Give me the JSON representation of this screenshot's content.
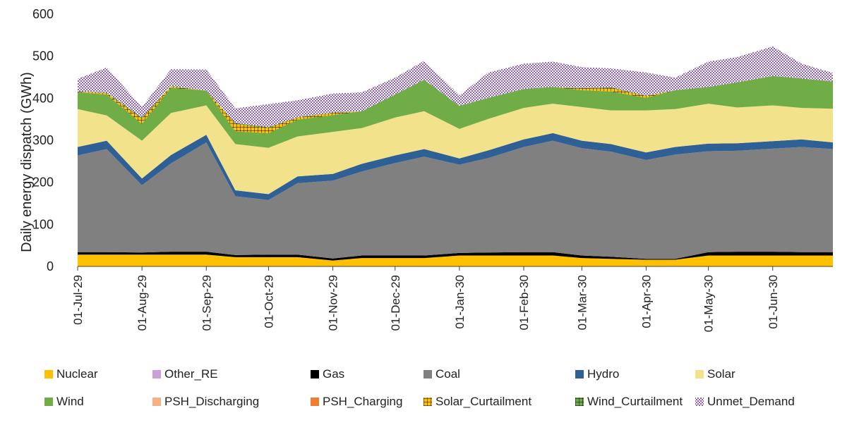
{
  "chart_data": {
    "type": "area",
    "stacked": true,
    "ylabel": "Daily energy dispatch (GWh)",
    "ylim": [
      0,
      600
    ],
    "yticks": [
      "0",
      "100",
      "200",
      "300",
      "400",
      "500",
      "600"
    ],
    "x_start": "01-Jul-29",
    "x_end": "30-Jun-30",
    "xtick_labels": [
      "01-Jul-29",
      "01-Aug-29",
      "01-Sep-29",
      "01-Oct-29",
      "01-Nov-29",
      "01-Dec-29",
      "01-Jan-30",
      "01-Feb-30",
      "01-Mar-30",
      "01-Apr-30",
      "01-May-30",
      "01-Jun-30"
    ],
    "grid": false,
    "legend_position": "bottom",
    "sample_dates": [
      "01-Jul-29",
      "15-Jul-29",
      "01-Aug-29",
      "15-Aug-29",
      "01-Sep-29",
      "15-Sep-29",
      "01-Oct-29",
      "15-Oct-29",
      "01-Nov-29",
      "15-Nov-29",
      "01-Dec-29",
      "15-Dec-29",
      "01-Jan-30",
      "15-Jan-30",
      "01-Feb-30",
      "15-Feb-30",
      "01-Mar-30",
      "15-Mar-30",
      "01-Apr-30",
      "15-Apr-30",
      "01-May-30",
      "15-May-30",
      "01-Jun-30",
      "15-Jun-30",
      "30-Jun-30"
    ],
    "series": [
      {
        "name": "Nuclear",
        "color": "#FFC000",
        "pattern": "solid",
        "values": [
          28,
          28,
          28,
          28,
          28,
          22,
          22,
          22,
          14,
          20,
          20,
          20,
          26,
          26,
          26,
          26,
          20,
          18,
          16,
          16,
          26,
          26,
          26,
          26,
          26
        ]
      },
      {
        "name": "Other_RE",
        "color": "#C9A0DC",
        "pattern": "solid",
        "values": [
          0,
          0,
          0,
          0,
          0,
          0,
          0,
          0,
          0,
          0,
          0,
          0,
          0,
          0,
          0,
          0,
          0,
          0,
          0,
          0,
          0,
          0,
          0,
          0,
          0
        ]
      },
      {
        "name": "Gas",
        "color": "#000000",
        "pattern": "solid",
        "values": [
          6,
          6,
          5,
          7,
          7,
          5,
          6,
          6,
          5,
          6,
          6,
          6,
          6,
          7,
          8,
          8,
          6,
          5,
          2,
          2,
          8,
          9,
          9,
          8,
          8
        ]
      },
      {
        "name": "Coal",
        "color": "#808080",
        "pattern": "solid",
        "values": [
          230,
          245,
          160,
          210,
          260,
          140,
          130,
          170,
          185,
          200,
          220,
          235,
          210,
          225,
          250,
          265,
          255,
          250,
          235,
          248,
          240,
          240,
          245,
          250,
          245
        ]
      },
      {
        "name": "Hydro",
        "color": "#2E5F95",
        "pattern": "solid",
        "values": [
          20,
          20,
          16,
          20,
          18,
          14,
          14,
          16,
          16,
          18,
          18,
          18,
          15,
          18,
          18,
          18,
          18,
          18,
          18,
          18,
          18,
          18,
          18,
          18,
          16
        ]
      },
      {
        "name": "Solar",
        "color": "#F3E28C",
        "pattern": "solid",
        "values": [
          90,
          60,
          90,
          100,
          70,
          110,
          110,
          95,
          100,
          85,
          90,
          90,
          70,
          75,
          75,
          70,
          80,
          80,
          100,
          90,
          95,
          85,
          85,
          75,
          80
        ]
      },
      {
        "name": "Wind",
        "color": "#70AD47",
        "pattern": "solid",
        "values": [
          40,
          50,
          40,
          60,
          35,
          30,
          35,
          40,
          40,
          40,
          55,
          75,
          55,
          50,
          45,
          40,
          40,
          45,
          30,
          45,
          40,
          60,
          70,
          70,
          65
        ]
      },
      {
        "name": "PSH_Discharging",
        "color": "#F4B183",
        "pattern": "solid",
        "values": [
          0,
          0,
          0,
          0,
          0,
          0,
          0,
          0,
          0,
          0,
          0,
          0,
          0,
          0,
          0,
          0,
          0,
          0,
          0,
          0,
          0,
          0,
          0,
          0,
          0
        ]
      },
      {
        "name": "PSH_Charging",
        "color": "#ED7D31",
        "pattern": "solid",
        "values": [
          0,
          0,
          0,
          0,
          0,
          0,
          0,
          0,
          0,
          0,
          0,
          0,
          0,
          0,
          0,
          0,
          0,
          0,
          0,
          0,
          0,
          0,
          0,
          0,
          0
        ]
      },
      {
        "name": "Solar_Curtailment",
        "color": "#FFC000",
        "pattern": "grid-dark",
        "values": [
          2,
          3,
          12,
          3,
          0,
          18,
          12,
          5,
          5,
          0,
          0,
          0,
          0,
          0,
          0,
          0,
          4,
          8,
          4,
          0,
          0,
          0,
          0,
          0,
          0
        ]
      },
      {
        "name": "Wind_Curtailment",
        "color": "#70AD47",
        "pattern": "grid-dark",
        "values": [
          0,
          1,
          3,
          1,
          0,
          2,
          2,
          1,
          1,
          0,
          0,
          0,
          0,
          0,
          0,
          0,
          1,
          2,
          1,
          0,
          0,
          0,
          0,
          0,
          0
        ]
      },
      {
        "name": "Unmet_Demand",
        "color": "#7030A0",
        "pattern": "dots",
        "values": [
          30,
          60,
          25,
          40,
          50,
          35,
          55,
          40,
          45,
          45,
          40,
          45,
          25,
          60,
          60,
          60,
          50,
          45,
          55,
          30,
          60,
          60,
          70,
          35,
          20
        ]
      }
    ]
  }
}
